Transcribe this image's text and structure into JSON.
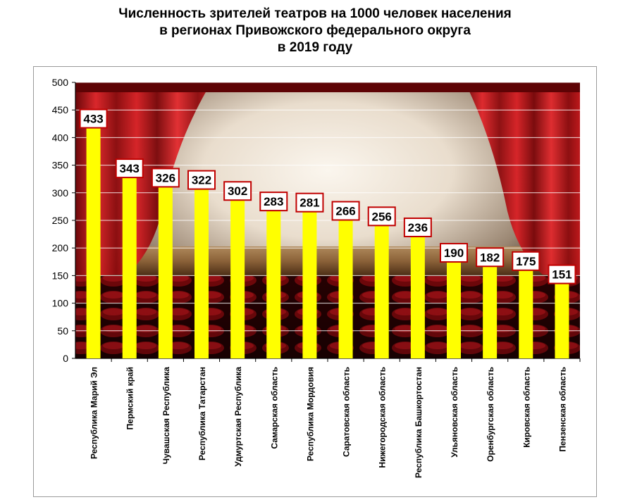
{
  "chart_data": {
    "type": "bar",
    "title_lines": [
      "Численность зрителей театров на 1000 человек населения",
      "в регионах Привожского федерального округа",
      "в 2019 году"
    ],
    "categories": [
      "Республика Марий Эл",
      "Пермский край",
      "Чувашская Республика",
      "Республика Татарстан",
      "Удмуртская Республика",
      "Самарская область",
      "Республика Мордовия",
      "Саратовская область",
      "Нижегородская область",
      "Республика Башкортостан",
      "Ульяновская область",
      "Оренбургская область",
      "Кировская область",
      "Пензенская область"
    ],
    "values": [
      433,
      343,
      326,
      322,
      302,
      283,
      281,
      266,
      256,
      236,
      190,
      182,
      175,
      151
    ],
    "ylim": [
      0,
      500
    ],
    "yticks": [
      0,
      50,
      100,
      150,
      200,
      250,
      300,
      350,
      400,
      450,
      500
    ],
    "grid": true,
    "bar_color": "#ffff00",
    "label_border_color": "#c00000"
  }
}
